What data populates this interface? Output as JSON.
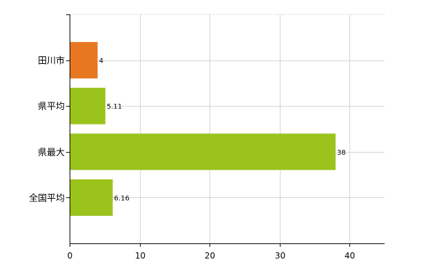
{
  "chart_data": {
    "type": "bar",
    "orientation": "horizontal",
    "title": "",
    "xlabel": "",
    "ylabel": "",
    "categories": [
      "田川市",
      "県平均",
      "県最大",
      "全国平均"
    ],
    "values": [
      4,
      5.11,
      38,
      6.16
    ],
    "data_labels": [
      "4",
      "5.11",
      "38",
      "6.16"
    ],
    "bar_colors": [
      "#e87722",
      "#9ac31c",
      "#9ac31c",
      "#9ac31c"
    ],
    "xlim": [
      0,
      45
    ],
    "x_ticks": [
      0,
      10,
      20,
      30,
      40
    ],
    "x_tick_labels": [
      "0",
      "10",
      "20",
      "30",
      "40"
    ],
    "grid": true,
    "legend": "none"
  }
}
